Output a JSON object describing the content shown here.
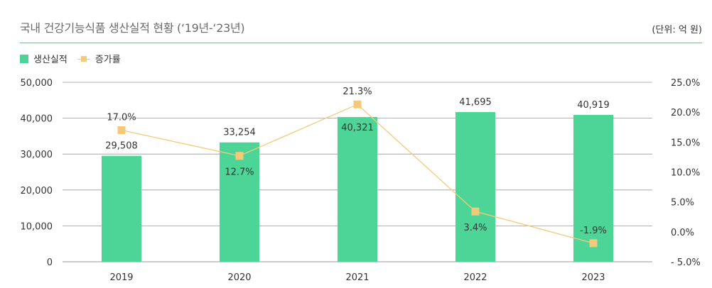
{
  "header": {
    "title": "국내 건강기능식품 생산실적 현황 (‘19년-‘23년)",
    "unit": "(단위: 억 원)"
  },
  "legend": {
    "bar": "생산실적",
    "line": "증가률"
  },
  "colors": {
    "bar": "#4dd597",
    "line": "#f5c97a",
    "grid": "#9a9a9a"
  },
  "chart_data": {
    "type": "bar",
    "title": "국내 건강기능식품 생산실적 현황 (‘19년-‘23년)",
    "categories": [
      "2019",
      "2020",
      "2021",
      "2022",
      "2023"
    ],
    "series": [
      {
        "name": "생산실적",
        "type": "bar",
        "axis": "left",
        "values": [
          29508,
          33254,
          40321,
          41695,
          40919
        ],
        "labels": [
          "29,508",
          "33,254",
          "40,321",
          "41,695",
          "40,919"
        ]
      },
      {
        "name": "증가률",
        "type": "line",
        "axis": "right",
        "values": [
          17.0,
          12.7,
          21.3,
          3.4,
          -1.9
        ],
        "labels": [
          "17.0%",
          "12.7%",
          "21.3%",
          "3.4%",
          "-1.9%"
        ]
      }
    ],
    "y_left": {
      "min": 0,
      "max": 50000,
      "ticks": [
        "0",
        "10,000",
        "20,000",
        "30,000",
        "40,000",
        "50,000"
      ],
      "tick_values": [
        0,
        10000,
        20000,
        30000,
        40000,
        50000
      ]
    },
    "y_right": {
      "min": -5,
      "max": 25,
      "ticks": [
        "- 5.0%",
        "0.0%",
        "5.0%",
        "10.0%",
        "15.0%",
        "20.0%",
        "25.0%"
      ],
      "tick_values": [
        -5,
        0,
        5,
        10,
        15,
        20,
        25
      ]
    },
    "grid": true,
    "legend_position": "top-left"
  }
}
